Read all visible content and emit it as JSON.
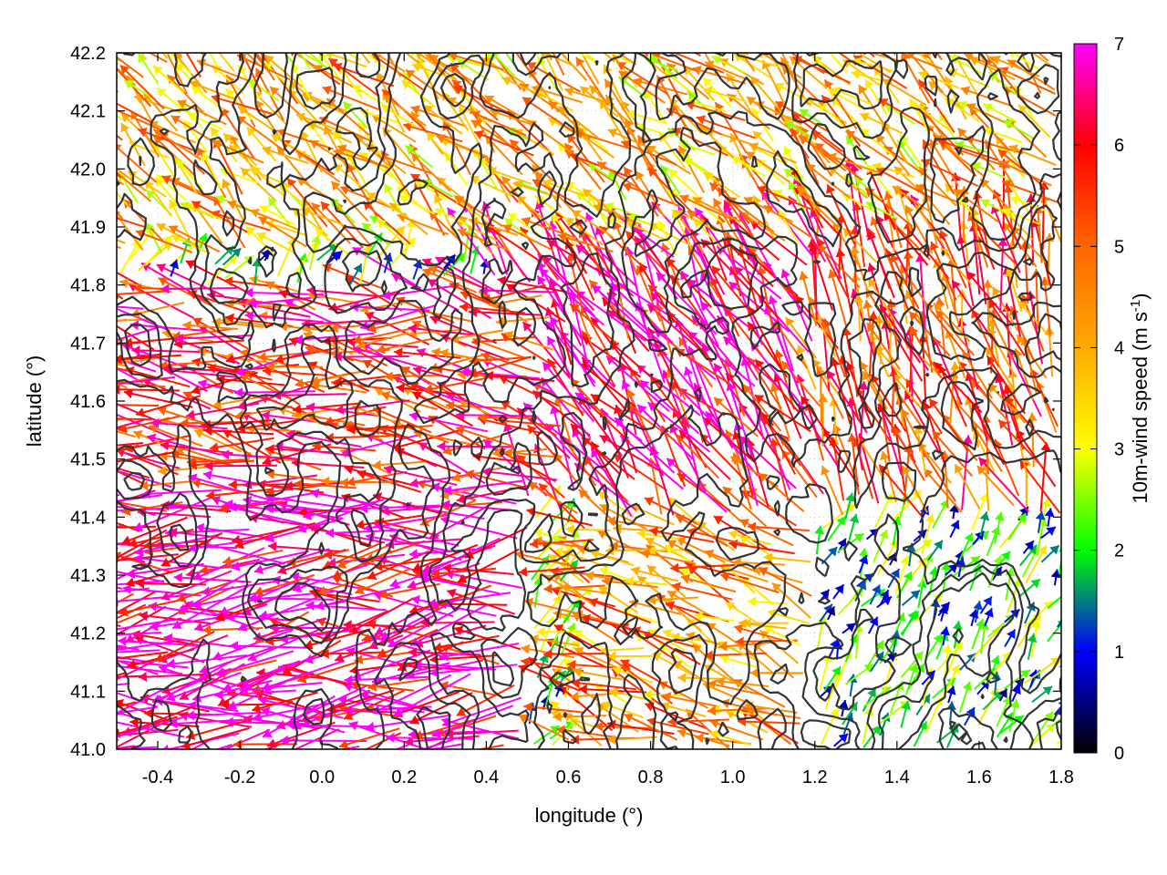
{
  "chart_data": {
    "type": "vector-field",
    "xlabel": "longitude (°)",
    "ylabel": "latitude (°)",
    "xlim": [
      -0.5,
      1.8
    ],
    "ylim": [
      41.0,
      42.2
    ],
    "x_ticks": [
      -0.4,
      -0.2,
      0.0,
      0.2,
      0.4,
      0.6,
      0.8,
      1.0,
      1.2,
      1.4,
      1.6,
      1.8
    ],
    "x_tick_labels": [
      "-0.4",
      "-0.2",
      "0.0",
      "0.2",
      "0.4",
      "0.6",
      "0.8",
      "1.0",
      "1.2",
      "1.4",
      "1.6",
      "1.8"
    ],
    "y_ticks": [
      41.0,
      41.1,
      41.2,
      41.3,
      41.4,
      41.5,
      41.6,
      41.7,
      41.8,
      41.9,
      42.0,
      42.1,
      42.2
    ],
    "y_tick_labels": [
      "41.0",
      "41.1",
      "41.2",
      "41.3",
      "41.4",
      "41.5",
      "41.6",
      "41.7",
      "41.8",
      "41.9",
      "42.0",
      "42.1",
      "42.2"
    ],
    "grid": true,
    "colorbar": {
      "label_main": "10m-wind speed (m s",
      "label_sup": "-1",
      "label_end": ")",
      "range": [
        0,
        7
      ],
      "ticks": [
        0,
        1,
        2,
        3,
        4,
        5,
        6,
        7
      ],
      "tick_labels": [
        "0",
        "1",
        "2",
        "3",
        "4",
        "5",
        "6",
        "7"
      ],
      "stops": [
        {
          "value": 0,
          "color": "#000000"
        },
        {
          "value": 1,
          "color": "#0000ff"
        },
        {
          "value": 2,
          "color": "#00ff00"
        },
        {
          "value": 3,
          "color": "#ffff00"
        },
        {
          "value": 4,
          "color": "#ffaa00"
        },
        {
          "value": 5,
          "color": "#ff6600"
        },
        {
          "value": 6,
          "color": "#ff0000"
        },
        {
          "value": 7,
          "color": "#ff00ff"
        }
      ]
    },
    "contour_color": "#333333",
    "vector_grid": {
      "dx": 0.05,
      "dy": 0.05
    },
    "wind_regions": [
      {
        "lon_range": [
          -0.5,
          0.5
        ],
        "lat_range": [
          41.0,
          41.45
        ],
        "speed": 6.6,
        "dir_deg": 185
      },
      {
        "lon_range": [
          -0.5,
          0.6
        ],
        "lat_range": [
          41.45,
          41.8
        ],
        "speed": 5.7,
        "dir_deg": 172
      },
      {
        "lon_range": [
          0.4,
          1.2
        ],
        "lat_range": [
          41.4,
          41.85
        ],
        "speed": 6.2,
        "dir_deg": 125
      },
      {
        "lon_range": [
          1.2,
          1.8
        ],
        "lat_range": [
          41.4,
          41.9
        ],
        "speed": 5.2,
        "dir_deg": 110
      },
      {
        "lon_range": [
          -0.5,
          1.8
        ],
        "lat_range": [
          41.85,
          42.2
        ],
        "speed": 4.0,
        "dir_deg": 140
      },
      {
        "lon_range": [
          0.6,
          1.2
        ],
        "lat_range": [
          41.0,
          41.4
        ],
        "speed": 4.4,
        "dir_deg": 160
      },
      {
        "lon_range": [
          1.2,
          1.8
        ],
        "lat_range": [
          41.0,
          41.25
        ],
        "speed": 2.0,
        "dir_deg": 60
      }
    ]
  }
}
